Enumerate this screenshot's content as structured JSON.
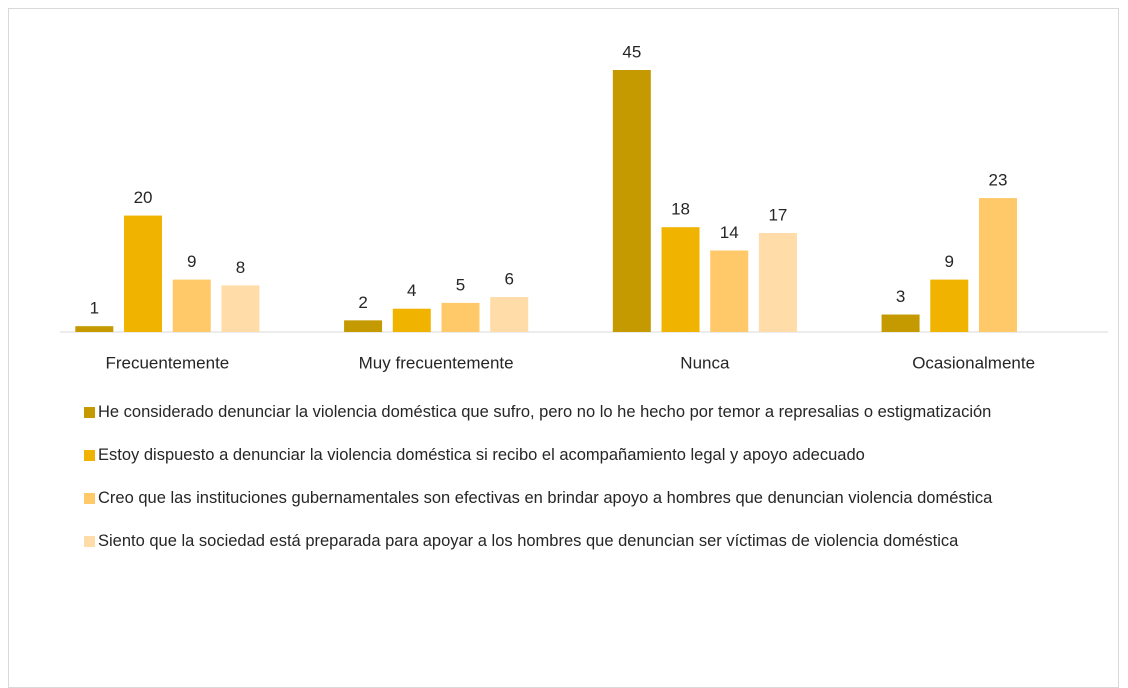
{
  "chart_data": {
    "type": "bar",
    "categories": [
      "Frecuentemente",
      "Muy frecuentemente",
      "Nunca",
      "Ocasionalmente"
    ],
    "series": [
      {
        "name": "He considerado denunciar la violencia doméstica que sufro, pero no lo he hecho por temor a represalias o estigmatización",
        "color": "#c49a00",
        "values": [
          1,
          2,
          45,
          3
        ]
      },
      {
        "name": "Estoy dispuesto a denunciar la violencia doméstica si recibo el acompañamiento legal y apoyo adecuado",
        "color": "#f0b400",
        "values": [
          20,
          4,
          18,
          9
        ]
      },
      {
        "name": "Creo que las instituciones gubernamentales son efectivas en brindar apoyo a hombres que denuncian violencia doméstica",
        "color": "#ffc869",
        "values": [
          9,
          5,
          14,
          23
        ]
      },
      {
        "name": "Siento que la sociedad está preparada para apoyar a los hombres que denuncian ser víctimas de violencia doméstica",
        "color": "#ffdca8",
        "values": [
          8,
          6,
          17,
          null
        ]
      }
    ],
    "legend": "bottom"
  }
}
